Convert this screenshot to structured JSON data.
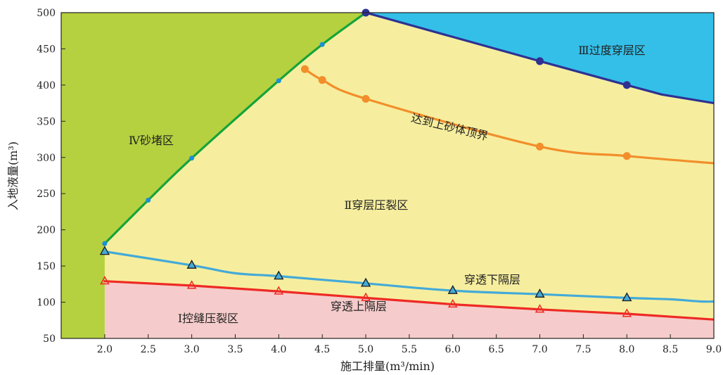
{
  "chart_data": {
    "type": "area",
    "title": "",
    "xlabel": "施工排量(m³/min)",
    "ylabel": "入地液量(m³)",
    "xlim": [
      1.5,
      9.0
    ],
    "ylim": [
      50,
      500
    ],
    "x_ticks": [
      "2.0",
      "2.5",
      "3.0",
      "3.5",
      "4.0",
      "4.5",
      "5.0",
      "5.5",
      "6.0",
      "6.5",
      "7.0",
      "7.5",
      "8.0",
      "8.5",
      "9.0"
    ],
    "y_ticks": [
      "50",
      "100",
      "150",
      "200",
      "250",
      "300",
      "350",
      "400",
      "450",
      "500"
    ],
    "colors": {
      "region_IV": "#b5d140",
      "region_III": "#33bfe8",
      "region_II": "#f6ee9e",
      "region_I": "#f5cccb",
      "sand_curve": "#16a33a",
      "sand_marker": "#1a8fd8",
      "transition_curve": "#2e3192",
      "top_curve": "#f28e2b",
      "lower_curve": "#44aad8",
      "upper_curve": "#ee2a24"
    },
    "regions": [
      {
        "id": "IV",
        "label": "Ⅳ砂堵区"
      },
      {
        "id": "III",
        "label": "Ⅲ过度穿层区"
      },
      {
        "id": "II",
        "label": "Ⅱ穿层压裂区"
      },
      {
        "id": "I",
        "label": "Ⅰ控缝压裂区"
      }
    ],
    "series": [
      {
        "id": "sand",
        "x": [
          2.0,
          2.5,
          3.0,
          4.0,
          4.5,
          5.0
        ],
        "y": [
          181,
          241,
          299,
          406,
          456,
          500
        ]
      },
      {
        "id": "transition",
        "x": [
          5.0,
          7.0,
          8.0,
          8.4,
          9.0
        ],
        "y": [
          500,
          433,
          400,
          387,
          375
        ]
      },
      {
        "id": "top",
        "name": "达到上砂体顶界",
        "x": [
          4.3,
          4.5,
          5.0,
          7.0,
          8.0,
          9.0
        ],
        "y": [
          422,
          407,
          381,
          315,
          302,
          292
        ]
      },
      {
        "id": "lower",
        "name": "穿透下隔层",
        "x": [
          2.0,
          3.0,
          3.5,
          4.0,
          5.0,
          6.0,
          7.0,
          8.0,
          8.5,
          8.85,
          9.0
        ],
        "y": [
          170,
          151,
          140,
          136,
          126,
          116,
          111,
          106,
          104,
          101,
          101
        ]
      },
      {
        "id": "upper",
        "name": "穿透上隔层",
        "x": [
          2.0,
          3.0,
          4.0,
          5.0,
          6.0,
          7.0,
          8.0,
          9.0
        ],
        "y": [
          129,
          123,
          115,
          106,
          97,
          90,
          84,
          76
        ]
      }
    ]
  }
}
